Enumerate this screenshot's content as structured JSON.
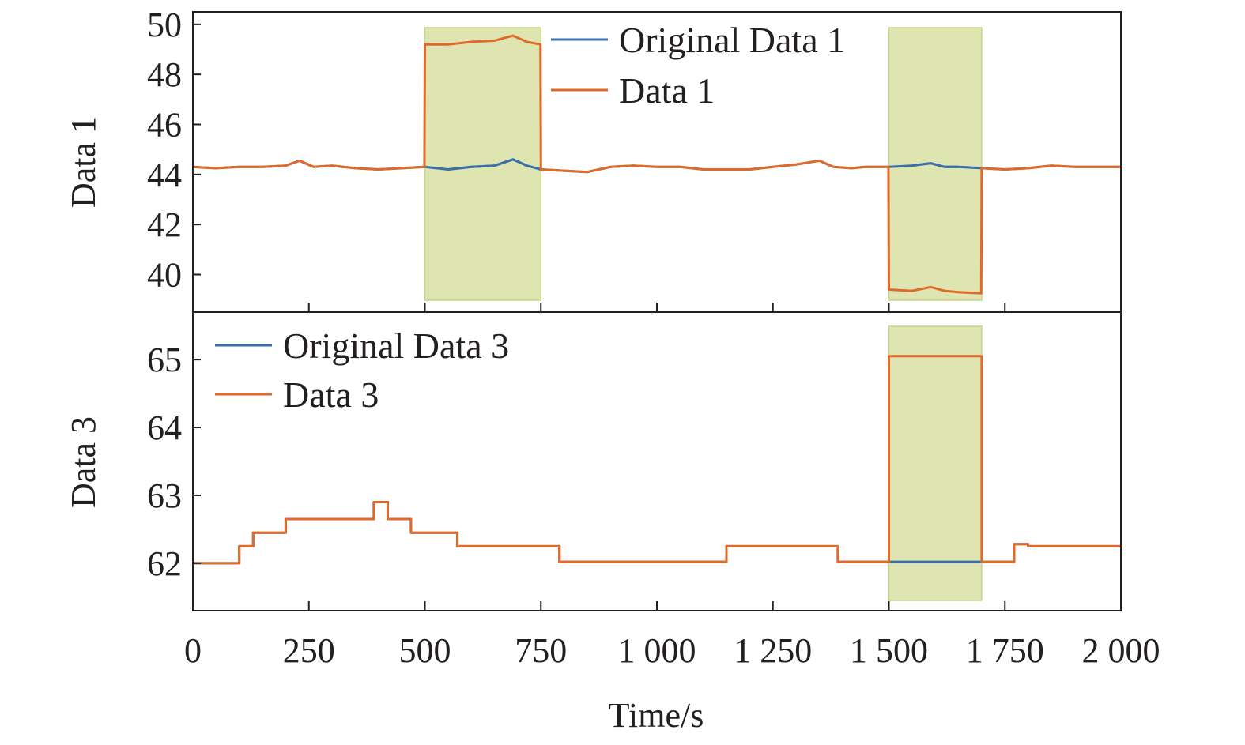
{
  "chart_data": [
    {
      "type": "line",
      "ylabel": "Data 1",
      "ylim": [
        38.5,
        50.5
      ],
      "yticks": [
        "50",
        "48",
        "46",
        "44",
        "42",
        "40"
      ],
      "xlim": [
        0,
        2000
      ],
      "highlight_ranges": [
        [
          500,
          750
        ],
        [
          1500,
          1700
        ]
      ],
      "highlight_color": "#dfe5b0",
      "legend_position": "top-center",
      "series": [
        {
          "name": "Original Data 1",
          "color": "#3b6fa8",
          "x": [
            0,
            50,
            100,
            150,
            200,
            230,
            260,
            300,
            350,
            400,
            450,
            500,
            550,
            600,
            650,
            690,
            720,
            750,
            800,
            850,
            900,
            950,
            1000,
            1050,
            1100,
            1150,
            1200,
            1250,
            1300,
            1350,
            1380,
            1420,
            1450,
            1500,
            1550,
            1590,
            1620,
            1650,
            1700,
            1750,
            1800,
            1850,
            1900,
            1950,
            2000
          ],
          "y": [
            44.3,
            44.25,
            44.3,
            44.3,
            44.35,
            44.55,
            44.3,
            44.35,
            44.25,
            44.2,
            44.25,
            44.3,
            44.2,
            44.3,
            44.35,
            44.6,
            44.35,
            44.2,
            44.15,
            44.1,
            44.3,
            44.35,
            44.3,
            44.3,
            44.2,
            44.2,
            44.2,
            44.3,
            44.4,
            44.55,
            44.3,
            44.25,
            44.3,
            44.3,
            44.35,
            44.45,
            44.3,
            44.3,
            44.25,
            44.2,
            44.25,
            44.35,
            44.3,
            44.3,
            44.3
          ]
        },
        {
          "name": "Data 1",
          "color": "#e06a2b",
          "x": [
            0,
            50,
            100,
            150,
            200,
            230,
            260,
            300,
            350,
            400,
            450,
            499,
            500,
            550,
            600,
            650,
            690,
            720,
            749,
            750,
            800,
            850,
            900,
            950,
            1000,
            1050,
            1100,
            1150,
            1200,
            1250,
            1300,
            1350,
            1380,
            1420,
            1450,
            1499,
            1500,
            1550,
            1590,
            1620,
            1650,
            1699,
            1700,
            1750,
            1800,
            1850,
            1900,
            1950,
            2000
          ],
          "y": [
            44.3,
            44.25,
            44.3,
            44.3,
            44.35,
            44.55,
            44.3,
            44.35,
            44.25,
            44.2,
            44.25,
            44.3,
            49.2,
            49.2,
            49.3,
            49.35,
            49.55,
            49.3,
            49.2,
            44.2,
            44.15,
            44.1,
            44.3,
            44.35,
            44.3,
            44.3,
            44.2,
            44.2,
            44.2,
            44.3,
            44.4,
            44.55,
            44.3,
            44.25,
            44.3,
            44.3,
            39.4,
            39.35,
            39.5,
            39.35,
            39.3,
            39.25,
            44.25,
            44.2,
            44.25,
            44.35,
            44.3,
            44.3,
            44.3
          ]
        }
      ]
    },
    {
      "type": "line",
      "xlabel": "Time/s",
      "ylabel": "Data 3",
      "ylim": [
        61.3,
        65.7
      ],
      "yticks": [
        "65",
        "64",
        "63",
        "62"
      ],
      "xlim": [
        0,
        2000
      ],
      "xticks": [
        "0",
        "250",
        "500",
        "750",
        "1 000",
        "1 250",
        "1 500",
        "1 750",
        "2 000"
      ],
      "highlight_ranges": [
        [
          1500,
          1700
        ]
      ],
      "highlight_color": "#dfe5b0",
      "legend_position": "top-left",
      "series": [
        {
          "name": "Original Data 3",
          "color": "#3b6fa8",
          "x": [
            0,
            100,
            100,
            130,
            130,
            200,
            200,
            390,
            390,
            420,
            420,
            470,
            470,
            570,
            570,
            790,
            790,
            1150,
            1150,
            1390,
            1390,
            1770,
            1770,
            1800,
            1800,
            2000
          ],
          "y": [
            62.0,
            62.0,
            62.25,
            62.25,
            62.45,
            62.45,
            62.65,
            62.65,
            62.9,
            62.9,
            62.65,
            62.65,
            62.45,
            62.45,
            62.25,
            62.25,
            62.02,
            62.02,
            62.25,
            62.25,
            62.02,
            62.02,
            62.28,
            62.28,
            62.25,
            62.25
          ]
        },
        {
          "name": "Data 3",
          "color": "#e06a2b",
          "x": [
            0,
            100,
            100,
            130,
            130,
            200,
            200,
            390,
            390,
            420,
            420,
            470,
            470,
            570,
            570,
            790,
            790,
            1150,
            1150,
            1390,
            1390,
            1500,
            1500,
            1700,
            1700,
            1770,
            1770,
            1800,
            1800,
            2000
          ],
          "y": [
            62.0,
            62.0,
            62.25,
            62.25,
            62.45,
            62.45,
            62.65,
            62.65,
            62.9,
            62.9,
            62.65,
            62.65,
            62.45,
            62.45,
            62.25,
            62.25,
            62.02,
            62.02,
            62.25,
            62.25,
            62.02,
            62.02,
            65.05,
            65.05,
            62.02,
            62.02,
            62.28,
            62.28,
            62.25,
            62.25
          ]
        }
      ]
    }
  ]
}
